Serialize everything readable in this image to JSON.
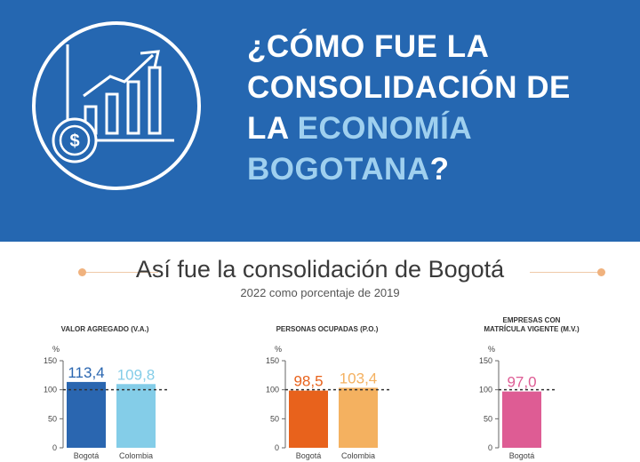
{
  "header": {
    "title_line1": "¿CÓMO FUE LA",
    "title_line2": "CONSOLIDACIÓN DE",
    "title_line3_a": "LA",
    "title_line3_b": "ECONOMÍA",
    "title_line4_a": "BOGOTANA",
    "title_line4_b": "?",
    "icon": "growth-chart-money-icon",
    "background_color": "#2567b1",
    "highlight_color": "#9fd0ef"
  },
  "section": {
    "title": "Así fue la consolidación de Bogotá",
    "subtitle": "2022 como porcentaje de 2019"
  },
  "chart_data": [
    {
      "type": "bar",
      "title": "VALOR AGREGADO (V.A.)",
      "ylabel": "%",
      "ylim": [
        0,
        150
      ],
      "yticks": [
        "0",
        "50",
        "100",
        "150"
      ],
      "reference_line": 100,
      "categories": [
        "Bogotá",
        "Colombia"
      ],
      "values": [
        113.4,
        109.8
      ],
      "value_labels": [
        "113,4",
        "109,8"
      ],
      "colors": [
        "#2a66b0",
        "#84cde8"
      ]
    },
    {
      "type": "bar",
      "title": "PERSONAS OCUPADAS (P.O.)",
      "ylabel": "%",
      "ylim": [
        0,
        150
      ],
      "yticks": [
        "0",
        "50",
        "100",
        "150"
      ],
      "reference_line": 100,
      "categories": [
        "Bogotá",
        "Colombia"
      ],
      "values": [
        98.5,
        103.4
      ],
      "value_labels": [
        "98,5",
        "103,4"
      ],
      "colors": [
        "#e8621c",
        "#f4b160"
      ]
    },
    {
      "type": "bar",
      "title": "EMPRESAS CON MATRÍCULA VIGENTE (M.V.)",
      "title_line1": "EMPRESAS  CON",
      "title_line2": "MATRÍCULA VIGENTE (M.V.)",
      "ylabel": "%",
      "ylim": [
        0,
        150
      ],
      "yticks": [
        "0",
        "50",
        "100",
        "150"
      ],
      "reference_line": 100,
      "categories": [
        "Bogotá"
      ],
      "values": [
        97.0
      ],
      "value_labels": [
        "97,0"
      ],
      "colors": [
        "#de5c94"
      ]
    }
  ]
}
